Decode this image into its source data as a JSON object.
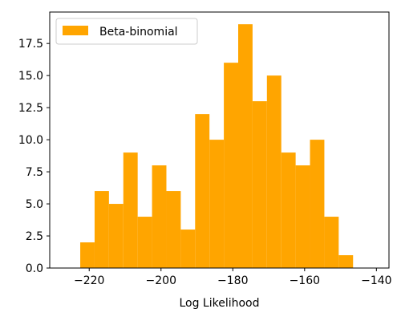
{
  "chart_data": {
    "type": "bar",
    "title": "",
    "xlabel": "Log Likelihood",
    "ylabel": "",
    "xlim": [
      -231,
      -136.5
    ],
    "ylim": [
      0,
      19.95
    ],
    "x_ticks": [
      -220,
      -200,
      -180,
      -160,
      -140
    ],
    "x_tick_labels": [
      "−220",
      "−200",
      "−180",
      "−160",
      "−140"
    ],
    "y_ticks": [
      0,
      2.5,
      5,
      7.5,
      10,
      12.5,
      15,
      17.5
    ],
    "y_tick_labels": [
      "0.0",
      "2.5",
      "5.0",
      "7.5",
      "10.0",
      "12.5",
      "15.0",
      "17.5"
    ],
    "bin_edges": [
      -222.5,
      -218.5,
      -214.5,
      -210.5,
      -206.5,
      -202.5,
      -198.5,
      -194.5,
      -190.5,
      -186.5,
      -182.5,
      -178.5,
      -174.5,
      -170.5,
      -166.5,
      -162.5,
      -158.5,
      -154.5,
      -150.5,
      -146.5,
      -142.5,
      -138.5
    ],
    "series": [
      {
        "name": "Beta-binomial",
        "color": "#ffa500",
        "values": [
          2,
          6,
          5,
          9,
          4,
          8,
          6,
          3,
          12,
          10,
          16,
          19,
          13,
          15,
          9,
          8,
          10,
          4,
          1,
          0,
          0
        ]
      }
    ],
    "legend": {
      "placement": "top-left",
      "entries": [
        "Beta-binomial"
      ]
    },
    "grid": false
  }
}
